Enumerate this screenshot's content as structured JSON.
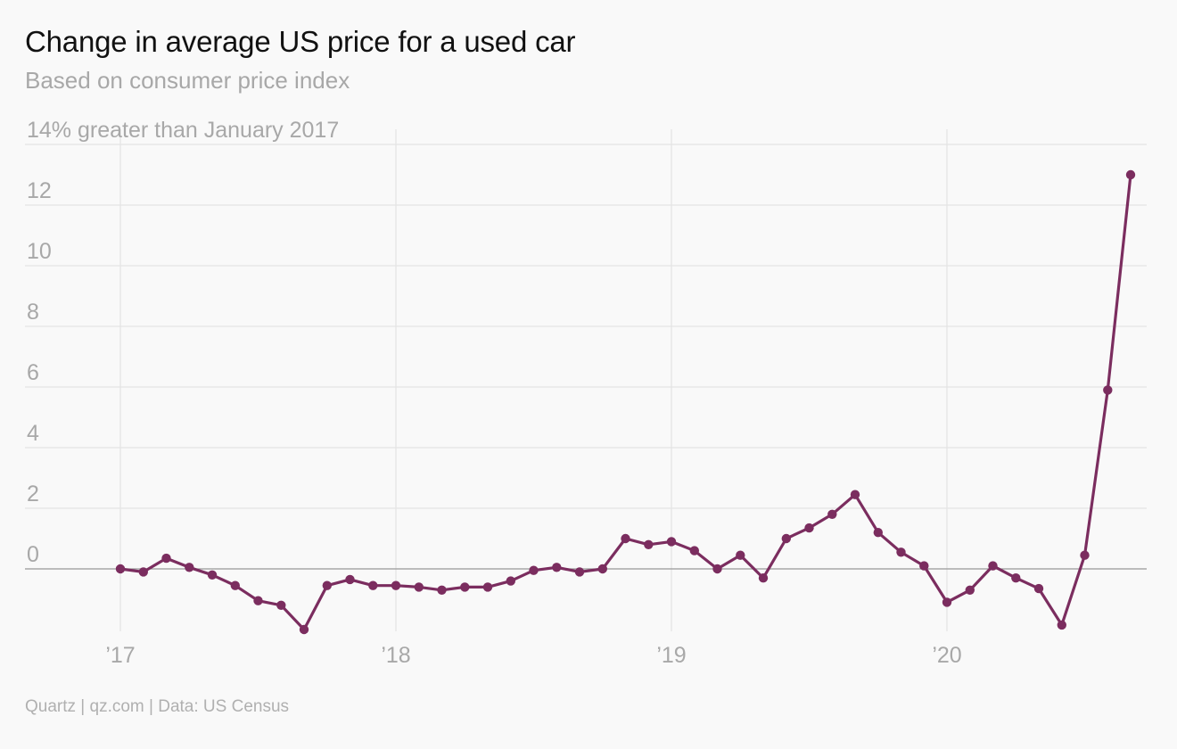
{
  "header": {
    "title": "Change in average US price for a used car",
    "subtitle": "Based on consumer price index"
  },
  "footer": {
    "source": "Quartz | qz.com | Data: US Census"
  },
  "colors": {
    "line": "#7b2d5f",
    "grid": "#e4e4e4",
    "zero_line": "#999999",
    "tick_text": "#a8a8a8"
  },
  "chart_data": {
    "type": "line",
    "title": "Change in average US price for a used car",
    "subtitle": "Based on consumer price index",
    "ylabel_top": "14% greater than January 2017",
    "xlabel": "",
    "ylim": [
      -2,
      14
    ],
    "yticks": [
      0,
      2,
      4,
      6,
      8,
      10,
      12
    ],
    "y_tick_labels": [
      "0",
      "2",
      "4",
      "6",
      "8",
      "10",
      "12"
    ],
    "xlim": [
      "2017-01",
      "2020-09"
    ],
    "xticks": [
      "2017-01",
      "2018-01",
      "2019-01",
      "2020-01"
    ],
    "x_tick_labels": [
      "’17",
      "’18",
      "’19",
      "’20"
    ],
    "grid": true,
    "series": [
      {
        "x": [
          "2017-01",
          "2017-02",
          "2017-03",
          "2017-04",
          "2017-05",
          "2017-06",
          "2017-07",
          "2017-08",
          "2017-09",
          "2017-10",
          "2017-11",
          "2017-12",
          "2018-01",
          "2018-02",
          "2018-03",
          "2018-04",
          "2018-05",
          "2018-06",
          "2018-07",
          "2018-08",
          "2018-09",
          "2018-10",
          "2018-11",
          "2018-12",
          "2019-01",
          "2019-02",
          "2019-03",
          "2019-04",
          "2019-05",
          "2019-06",
          "2019-07",
          "2019-08",
          "2019-09",
          "2019-10",
          "2019-11",
          "2019-12",
          "2020-01",
          "2020-02",
          "2020-03",
          "2020-04",
          "2020-05",
          "2020-06",
          "2020-07",
          "2020-08",
          "2020-09"
        ],
        "values": [
          0.0,
          -0.1,
          0.35,
          0.05,
          -0.2,
          -0.55,
          -1.05,
          -1.2,
          -2.0,
          -0.55,
          -0.35,
          -0.55,
          -0.55,
          -0.6,
          -0.7,
          -0.6,
          -0.6,
          -0.4,
          -0.05,
          0.05,
          -0.1,
          0.0,
          1.0,
          0.8,
          0.9,
          0.6,
          0.0,
          0.45,
          -0.3,
          1.0,
          1.35,
          1.8,
          2.45,
          1.2,
          0.55,
          0.1,
          -1.1,
          -0.7,
          0.1,
          -0.3,
          -0.65,
          -1.85,
          0.45,
          5.9,
          13.0
        ]
      }
    ]
  }
}
